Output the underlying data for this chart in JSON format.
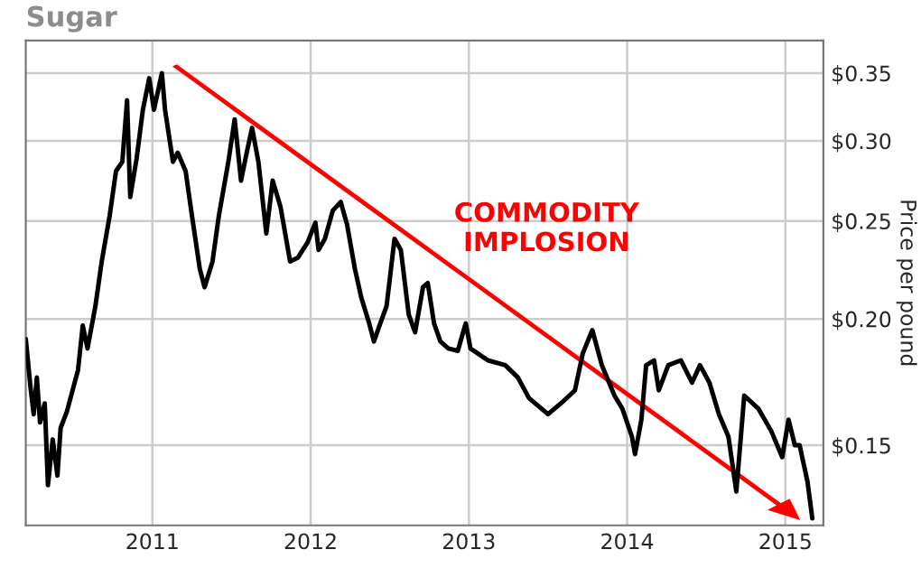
{
  "chart_data": {
    "type": "line",
    "title": "Sugar",
    "ylabel": "Price per pound",
    "log": true,
    "grid": true,
    "legend": false,
    "marker": "none",
    "line_style": "solid",
    "xlim": [
      2010.2,
      2015.24
    ],
    "xticks": [
      2011,
      2012,
      2013,
      2014,
      2015
    ],
    "ylim": [
      0.125,
      0.377
    ],
    "yticks": [
      {
        "value": 0.15,
        "label": "$0.15"
      },
      {
        "value": 0.2,
        "label": "$0.20"
      },
      {
        "value": 0.25,
        "label": "$0.25"
      },
      {
        "value": 0.3,
        "label": "$0.30"
      },
      {
        "value": 0.35,
        "label": "$0.35"
      }
    ],
    "annotations": [
      "COMMODITY\nIMPLOSION"
    ],
    "series": [
      {
        "color": "#000000",
        "x": [
          2010.2,
          2010.23,
          2010.25,
          2010.27,
          2010.29,
          2010.32,
          2010.34,
          2010.37,
          2010.4,
          2010.42,
          2010.46,
          2010.5,
          2010.53,
          2010.56,
          2010.59,
          2010.64,
          2010.68,
          2010.73,
          2010.77,
          2010.81,
          2010.84,
          2010.86,
          2010.9,
          2010.94,
          2010.98,
          2011.01,
          2011.06,
          2011.08,
          2011.13,
          2011.16,
          2011.21,
          2011.25,
          2011.3,
          2011.33,
          2011.38,
          2011.42,
          2011.48,
          2011.52,
          2011.56,
          2011.6,
          2011.63,
          2011.67,
          2011.72,
          2011.76,
          2011.81,
          2011.87,
          2011.92,
          2011.98,
          2012.03,
          2012.05,
          2012.09,
          2012.14,
          2012.19,
          2012.23,
          2012.28,
          2012.32,
          2012.37,
          2012.4,
          2012.44,
          2012.48,
          2012.53,
          2012.57,
          2012.62,
          2012.66,
          2012.71,
          2012.74,
          2012.78,
          2012.82,
          2012.87,
          2012.93,
          2012.98,
          2013.01,
          2013.12,
          2013.23,
          2013.31,
          2013.38,
          2013.5,
          2013.6,
          2013.67,
          2013.72,
          2013.78,
          2013.84,
          2013.92,
          2013.97,
          2014.03,
          2014.05,
          2014.09,
          2014.12,
          2014.17,
          2014.2,
          2014.26,
          2014.34,
          2014.41,
          2014.46,
          2014.52,
          2014.58,
          2014.64,
          2014.69,
          2014.74,
          2014.83,
          2014.91,
          2014.98,
          2015.02,
          2015.06,
          2015.09,
          2015.14,
          2015.17
        ],
        "values": [
          0.191,
          0.171,
          0.161,
          0.175,
          0.158,
          0.165,
          0.137,
          0.152,
          0.14,
          0.156,
          0.162,
          0.171,
          0.178,
          0.197,
          0.187,
          0.206,
          0.228,
          0.253,
          0.28,
          0.286,
          0.329,
          0.264,
          0.288,
          0.322,
          0.346,
          0.322,
          0.35,
          0.322,
          0.286,
          0.292,
          0.28,
          0.253,
          0.224,
          0.215,
          0.228,
          0.253,
          0.286,
          0.315,
          0.274,
          0.294,
          0.309,
          0.286,
          0.243,
          0.274,
          0.258,
          0.228,
          0.23,
          0.238,
          0.249,
          0.234,
          0.24,
          0.256,
          0.261,
          0.248,
          0.224,
          0.21,
          0.198,
          0.19,
          0.198,
          0.206,
          0.24,
          0.234,
          0.202,
          0.194,
          0.215,
          0.217,
          0.198,
          0.19,
          0.187,
          0.186,
          0.198,
          0.187,
          0.182,
          0.18,
          0.175,
          0.167,
          0.161,
          0.166,
          0.17,
          0.185,
          0.195,
          0.18,
          0.168,
          0.163,
          0.153,
          0.147,
          0.159,
          0.18,
          0.182,
          0.17,
          0.18,
          0.182,
          0.173,
          0.18,
          0.173,
          0.161,
          0.153,
          0.135,
          0.168,
          0.163,
          0.155,
          0.146,
          0.159,
          0.15,
          0.15,
          0.138,
          0.127
        ]
      }
    ]
  }
}
